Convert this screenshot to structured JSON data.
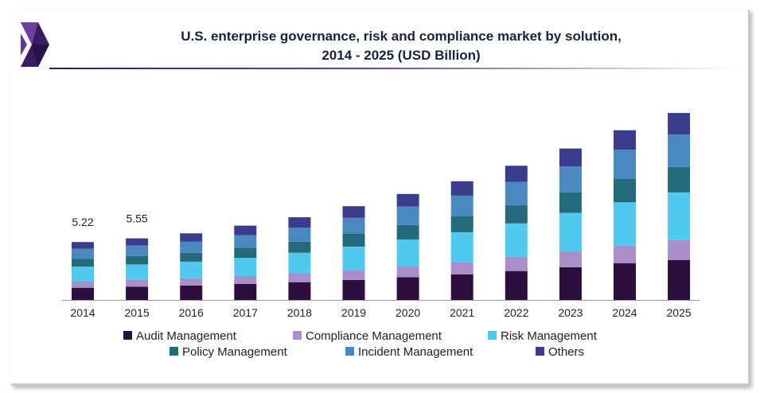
{
  "title_line1": "U.S. enterprise governance, risk and compliance market by solution,",
  "title_line2": "2014 - 2025 (USD Billion)",
  "colors": {
    "Audit Management": "#2e0e3f",
    "Compliance Management": "#a98fc9",
    "Risk Management": "#51c8f0",
    "Policy Management": "#236a7b",
    "Incident Management": "#4a89bf",
    "Others": "#3a3c8e"
  },
  "chart_data": {
    "type": "bar",
    "stacked": true,
    "title": "U.S. enterprise governance, risk and compliance market by solution, 2014 - 2025 (USD Billion)",
    "categories": [
      "2014",
      "2015",
      "2016",
      "2017",
      "2018",
      "2019",
      "2020",
      "2021",
      "2022",
      "2023",
      "2024",
      "2025"
    ],
    "series": [
      {
        "name": "Audit Management",
        "values": [
          1.1,
          1.2,
          1.3,
          1.45,
          1.6,
          1.8,
          2.05,
          2.3,
          2.6,
          2.95,
          3.3,
          3.6
        ]
      },
      {
        "name": "Compliance Management",
        "values": [
          0.55,
          0.6,
          0.65,
          0.7,
          0.8,
          0.9,
          1.0,
          1.1,
          1.3,
          1.45,
          1.6,
          1.8
        ]
      },
      {
        "name": "Risk Management",
        "values": [
          1.35,
          1.4,
          1.5,
          1.65,
          1.85,
          2.1,
          2.4,
          2.7,
          3.0,
          3.45,
          3.9,
          4.3
        ]
      },
      {
        "name": "Policy Management",
        "values": [
          0.7,
          0.75,
          0.8,
          0.9,
          1.0,
          1.15,
          1.3,
          1.45,
          1.65,
          1.85,
          2.1,
          2.3
        ]
      },
      {
        "name": "Incident Management",
        "values": [
          0.9,
          0.95,
          1.0,
          1.15,
          1.25,
          1.45,
          1.65,
          1.85,
          2.1,
          2.35,
          2.65,
          2.9
        ]
      },
      {
        "name": "Others",
        "values": [
          0.62,
          0.65,
          0.75,
          0.85,
          0.95,
          1.05,
          1.15,
          1.3,
          1.45,
          1.6,
          1.75,
          1.95
        ]
      }
    ],
    "data_labels": [
      {
        "category": "2014",
        "text": "5.22"
      },
      {
        "category": "2015",
        "text": "5.55"
      }
    ],
    "xlabel": "",
    "ylabel": "",
    "ylim": [
      0,
      18
    ],
    "grid": false,
    "legend_position": "bottom"
  }
}
